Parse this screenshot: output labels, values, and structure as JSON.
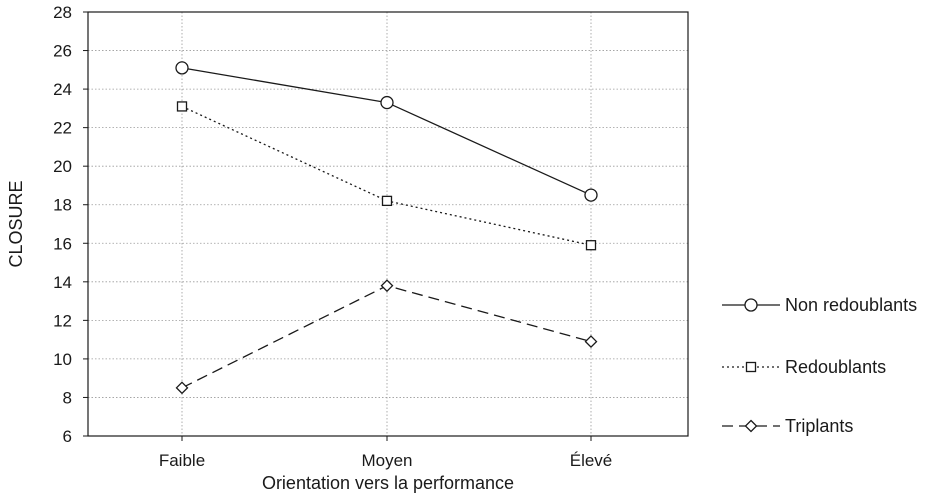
{
  "chart_data": {
    "type": "line",
    "title": "",
    "xlabel": "Orientation vers la performance",
    "ylabel": "CLOSURE",
    "categories": [
      "Faible",
      "Moyen",
      "Élevé"
    ],
    "ylim": [
      6,
      28
    ],
    "yticks": [
      6,
      8,
      10,
      12,
      14,
      16,
      18,
      20,
      22,
      24,
      26,
      28
    ],
    "grid": true,
    "legend_position": "right",
    "series": [
      {
        "name": "Non redoublants",
        "values": [
          25.1,
          23.3,
          18.5
        ],
        "marker": "circle",
        "line_style": "solid",
        "color": "#1a1a1a"
      },
      {
        "name": "Redoublants",
        "values": [
          23.1,
          18.2,
          15.9
        ],
        "marker": "square",
        "line_style": "dotted",
        "color": "#1a1a1a"
      },
      {
        "name": "Triplants",
        "values": [
          8.5,
          13.8,
          10.9
        ],
        "marker": "diamond",
        "line_style": "dashed",
        "color": "#1a1a1a"
      }
    ]
  }
}
